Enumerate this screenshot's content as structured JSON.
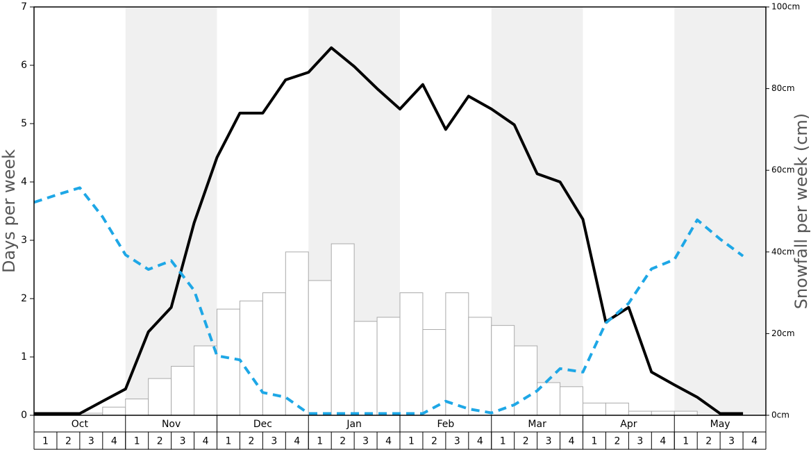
{
  "chart_data": {
    "type": "bar",
    "y_label": "Days per week",
    "y2_label": "Snowfall per week (cm)",
    "months": [
      "Oct",
      "Nov",
      "Dec",
      "Jan",
      "Feb",
      "Mar",
      "Apr",
      "May"
    ],
    "categories": [
      "1",
      "2",
      "3",
      "4",
      "1",
      "2",
      "3",
      "4",
      "1",
      "2",
      "3",
      "4",
      "1",
      "2",
      "3",
      "4",
      "1",
      "2",
      "3",
      "4",
      "1",
      "2",
      "3",
      "4",
      "1",
      "2",
      "3",
      "4",
      "1",
      "2",
      "3",
      "4"
    ],
    "ylim": [
      0,
      7
    ],
    "yticks": [
      0,
      1,
      2,
      3,
      4,
      5,
      6,
      7
    ],
    "y2lim": [
      0,
      100
    ],
    "y2ticks": [
      {
        "value": 0,
        "label": "0cm"
      },
      {
        "value": 20,
        "label": "20cm"
      },
      {
        "value": 40,
        "label": "40cm"
      },
      {
        "value": 60,
        "label": "60cm"
      },
      {
        "value": 80,
        "label": "80cm"
      },
      {
        "value": 100,
        "label": "100cm"
      }
    ],
    "bars": {
      "color": "#ffffff",
      "axis": "y2",
      "values": [
        0,
        0,
        0.5,
        2,
        4,
        9,
        12,
        17,
        26,
        28,
        30,
        40,
        33,
        42,
        23,
        24,
        30,
        21,
        30,
        24,
        22,
        17,
        8,
        7,
        3,
        3,
        1,
        1,
        1,
        0,
        0,
        0
      ]
    },
    "series": [
      {
        "color": "#000000",
        "style": "solid",
        "values": [
          0.03,
          0.03,
          0.03,
          0.24,
          0.45,
          1.43,
          1.85,
          3.3,
          4.42,
          5.18,
          5.18,
          5.75,
          5.88,
          6.3,
          5.98,
          5.6,
          5.25,
          5.67,
          4.9,
          5.47,
          5.25,
          4.98,
          4.14,
          4.0,
          3.36,
          1.6,
          1.85,
          0.74,
          0.52,
          0.31,
          0.03,
          0.03
        ]
      },
      {
        "color": "#1ea7e6",
        "style": "dashed",
        "values": [
          3.65,
          3.78,
          3.9,
          3.4,
          2.75,
          2.5,
          2.65,
          2.14,
          1.02,
          0.95,
          0.39,
          0.31,
          0.03,
          0.03,
          0.03,
          0.03,
          0.03,
          0.03,
          0.24,
          0.11,
          0.04,
          0.18,
          0.42,
          0.8,
          0.74,
          1.58,
          1.92,
          2.51,
          2.67,
          3.35,
          3.02,
          2.73
        ]
      }
    ]
  }
}
